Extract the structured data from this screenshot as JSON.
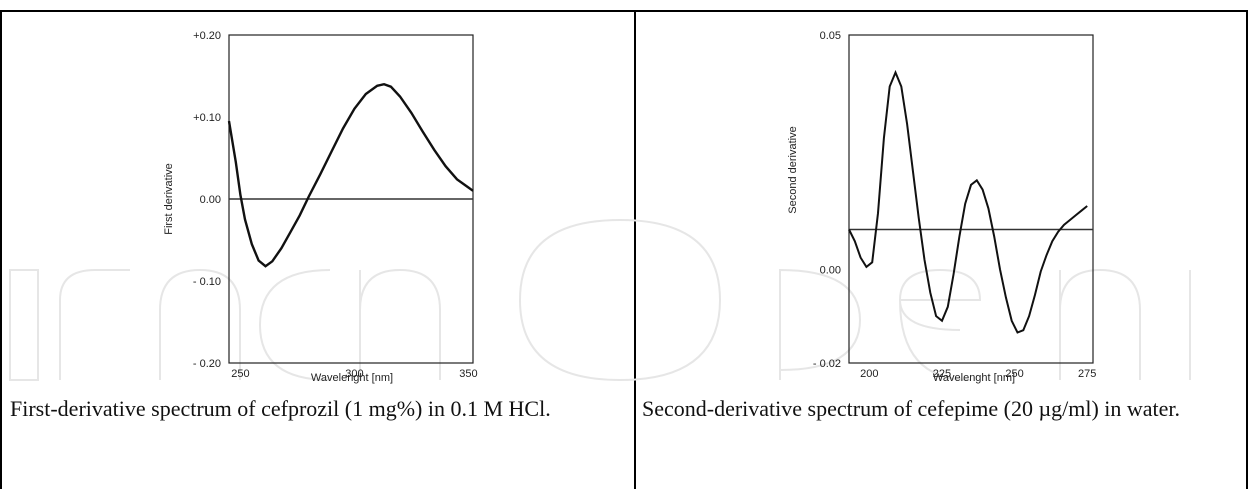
{
  "charts": [
    {
      "ylabel": "First derivative",
      "xlabel": "Wavelenght [nm]",
      "yticks": [
        "+0.20",
        "+0.10",
        "0.00",
        "- 0.10",
        "- 0.20"
      ],
      "xticks": [
        "250",
        "300",
        "350"
      ]
    },
    {
      "ylabel": "Second derivative",
      "xlabel": "Wavelenght [nm]",
      "yticks": [
        "0.05",
        "0.00",
        "- 0.02"
      ],
      "xticks": [
        "200",
        "225",
        "250",
        "275"
      ]
    }
  ],
  "chart_data": [
    {
      "type": "line",
      "xlabel": "Wavelenght [nm]",
      "ylabel": "First derivative",
      "xlim": [
        245,
        352
      ],
      "ylim": [
        -0.2,
        0.2
      ],
      "ytick_values": [
        0.2,
        0.1,
        0.0,
        -0.1,
        -0.2
      ],
      "xtick_values": [
        250,
        300,
        350
      ],
      "baseline": 0.0,
      "series": [
        {
          "x": [
            245,
            248,
            250,
            252,
            255,
            258,
            261,
            264,
            268,
            272,
            276,
            280,
            285,
            290,
            295,
            300,
            305,
            310,
            313,
            316,
            320,
            325,
            330,
            335,
            340,
            345,
            350,
            352
          ],
          "y": [
            0.095,
            0.045,
            0.005,
            -0.025,
            -0.055,
            -0.075,
            -0.082,
            -0.076,
            -0.06,
            -0.04,
            -0.02,
            0.003,
            0.03,
            0.058,
            0.086,
            0.11,
            0.128,
            0.138,
            0.14,
            0.137,
            0.125,
            0.105,
            0.082,
            0.06,
            0.04,
            0.024,
            0.014,
            0.01
          ]
        }
      ]
    },
    {
      "type": "line",
      "xlabel": "Wavelenght [nm]",
      "ylabel": "Second derivative",
      "xlim": [
        193,
        277
      ],
      "ylim": [
        -0.02,
        0.05
      ],
      "ytick_values": [
        0.05,
        0.0,
        -0.02
      ],
      "xtick_values": [
        200,
        225,
        250,
        275
      ],
      "baseline": 0.0085,
      "series": [
        {
          "x": [
            193,
            195,
            197,
            199,
            201,
            203,
            205,
            207,
            209,
            211,
            213,
            215,
            217,
            219,
            221,
            223,
            225,
            227,
            229,
            231,
            233,
            235,
            237,
            239,
            241,
            243,
            245,
            247,
            249,
            251,
            253,
            255,
            257,
            259,
            261,
            263,
            265,
            267,
            269,
            271,
            273,
            275
          ],
          "y": [
            0.0085,
            0.006,
            0.0025,
            0.0005,
            0.0015,
            0.012,
            0.028,
            0.039,
            0.042,
            0.039,
            0.031,
            0.021,
            0.011,
            0.002,
            -0.005,
            -0.01,
            -0.011,
            -0.008,
            -0.001,
            0.007,
            0.014,
            0.018,
            0.019,
            0.017,
            0.013,
            0.007,
            0.0,
            -0.006,
            -0.011,
            -0.0135,
            -0.013,
            -0.01,
            -0.0055,
            -0.0005,
            0.003,
            0.006,
            0.008,
            0.0095,
            0.0105,
            0.0115,
            0.0125,
            0.0135
          ]
        }
      ]
    }
  ],
  "captions": {
    "left": "First-derivative spectrum  of cefprozil (1 mg%) in 0.1 M HCl.",
    "right": "Second-derivative spectrum of cefepime (20 µg/ml) in water."
  }
}
